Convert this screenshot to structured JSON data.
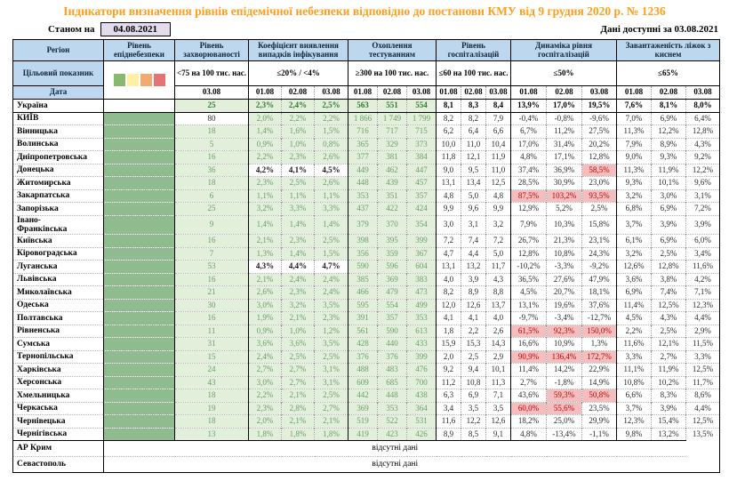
{
  "title": "Індикатори визначення рівнів епідемічної небезпеки відповідно до постанови КМУ від 9 грудня 2020 р. № 1236",
  "as_of": {
    "label": "Станом на",
    "date": "04.08.2021"
  },
  "available": {
    "label": "Дані доступні за",
    "date": "03.08.2021"
  },
  "columns": {
    "region": "Регіон",
    "danger_level": "Рівень епіднебезпеки"
  },
  "target_label": "Цільовий показник",
  "date_label": "Дата",
  "no_data_text": "відсутні дані",
  "legend": [
    {
      "name": "green",
      "color": "#86BA6E"
    },
    {
      "name": "yellow",
      "color": "#FFF1A0"
    },
    {
      "name": "orange",
      "color": "#F4A970"
    },
    {
      "name": "red",
      "color": "#E57373"
    }
  ],
  "danger_level_color": "#8FBC8F",
  "highlight_color": "#F5BEBE",
  "groups": [
    {
      "label": "Рівень захворюваності",
      "threshold": "<75 на 100 тис. нас.",
      "dates": [
        "03.08"
      ]
    },
    {
      "label": "Коефіцієнт виявлення випадків інфікування",
      "threshold": "≤20% / <4%",
      "dates": [
        "01.08",
        "02.08",
        "03.08"
      ]
    },
    {
      "label": "Охоплення тестуванням",
      "threshold": "≥300 на 100 тис. нас.",
      "dates": [
        "01.08",
        "02.08",
        "03.08"
      ]
    },
    {
      "label": "Рівень госпіталізацій",
      "threshold": "≤60 на 100 тис. нас.",
      "dates": [
        "01.08",
        "02.08",
        "03.08"
      ]
    },
    {
      "label": "Динаміка рівня госпіталізацій",
      "threshold": "≤50%",
      "dates": [
        "01.08",
        "02.08",
        "03.08"
      ]
    },
    {
      "label": "Завантаженість ліжок з киснем",
      "threshold": "≤65%",
      "dates": [
        "01.08",
        "02.08",
        "03.08"
      ]
    }
  ],
  "rows": [
    {
      "region": "Україна",
      "bold": true,
      "level_white": true,
      "sep_bottom": true,
      "morbidity": "25",
      "coef": [
        "2,3%",
        "2,4%",
        "2,5%"
      ],
      "test": [
        "563",
        "551",
        "554"
      ],
      "hosp": [
        "8,1",
        "8,3",
        "8,4"
      ],
      "dyn": [
        "13,9%",
        "17,0%",
        "19,5%"
      ],
      "oxy": [
        "7,6%",
        "8,1%",
        "8,0%"
      ]
    },
    {
      "region": "КИЇВ",
      "morbidity": "80",
      "morbidity_hl": true,
      "coef": [
        "2,0%",
        "2,2%",
        "2,2%"
      ],
      "test": [
        "1 866",
        "1 749",
        "1 799"
      ],
      "hosp": [
        "8,2",
        "8,2",
        "7,9"
      ],
      "dyn": [
        "-0,4%",
        "-0,8%",
        "-9,6%"
      ],
      "oxy": [
        "7,0%",
        "6,9%",
        "6,4%"
      ]
    },
    {
      "region": "Вінницька",
      "morbidity": "18",
      "coef": [
        "1,4%",
        "1,6%",
        "1,5%"
      ],
      "test": [
        "716",
        "717",
        "715"
      ],
      "hosp": [
        "6,2",
        "6,4",
        "6,6"
      ],
      "dyn": [
        "6,7%",
        "11,2%",
        "27,5%"
      ],
      "oxy": [
        "11,3%",
        "12,2%",
        "12,8%"
      ]
    },
    {
      "region": "Волинська",
      "morbidity": "5",
      "coef": [
        "0,9%",
        "1,0%",
        "0,8%"
      ],
      "test": [
        "365",
        "329",
        "373"
      ],
      "hosp": [
        "10,0",
        "11,0",
        "10,4"
      ],
      "dyn": [
        "17,0%",
        "31,4%",
        "20,2%"
      ],
      "oxy": [
        "7,9%",
        "8,9%",
        "4,3%"
      ]
    },
    {
      "region": "Дніпропетровська",
      "morbidity": "16",
      "coef": [
        "2,2%",
        "2,3%",
        "2,6%"
      ],
      "test": [
        "377",
        "381",
        "384"
      ],
      "hosp": [
        "11,8",
        "12,1",
        "11,9"
      ],
      "dyn": [
        "4,8%",
        "17,1%",
        "12,8%"
      ],
      "oxy": [
        "9,0%",
        "9,3%",
        "9,2%"
      ]
    },
    {
      "region": "Донецька",
      "morbidity": "36",
      "coef": [
        "4,2%",
        "4,1%",
        "4,5%"
      ],
      "coef_hl": [
        true,
        true,
        true
      ],
      "test": [
        "449",
        "462",
        "447"
      ],
      "hosp": [
        "9,0",
        "9,5",
        "11,0"
      ],
      "dyn": [
        "37,4%",
        "36,9%",
        "58,5%"
      ],
      "dyn_red": [
        false,
        false,
        true
      ],
      "oxy": [
        "11,3%",
        "11,9%",
        "12,2%"
      ]
    },
    {
      "region": "Житомирська",
      "morbidity": "18",
      "coef": [
        "2,3%",
        "2,5%",
        "2,6%"
      ],
      "test": [
        "448",
        "439",
        "457"
      ],
      "hosp": [
        "13,1",
        "13,4",
        "12,5"
      ],
      "dyn": [
        "28,5%",
        "30,9%",
        "23,0%"
      ],
      "oxy": [
        "9,3%",
        "10,1%",
        "9,6%"
      ]
    },
    {
      "region": "Закарпатська",
      "morbidity": "6",
      "coef": [
        "1,1%",
        "1,1%",
        "1,1%"
      ],
      "test": [
        "353",
        "351",
        "357"
      ],
      "hosp": [
        "4,8",
        "5,0",
        "4,8"
      ],
      "dyn": [
        "87,5%",
        "103,2%",
        "93,5%"
      ],
      "dyn_red": [
        true,
        true,
        true
      ],
      "oxy": [
        "3,2%",
        "3,0%",
        "3,1%"
      ]
    },
    {
      "region": "Запорізька",
      "morbidity": "25",
      "coef": [
        "3,2%",
        "3,3%",
        "3,3%"
      ],
      "test": [
        "437",
        "422",
        "424"
      ],
      "hosp": [
        "9,9",
        "9,6",
        "9,9"
      ],
      "dyn": [
        "12,9%",
        "5,2%",
        "2,5%"
      ],
      "oxy": [
        "6,8%",
        "6,9%",
        "7,2%"
      ]
    },
    {
      "region": "Івано-\nФранківська",
      "morbidity": "9",
      "coef": [
        "1,4%",
        "1,4%",
        "1,4%"
      ],
      "test": [
        "379",
        "370",
        "354"
      ],
      "hosp": [
        "3,0",
        "3,1",
        "3,2"
      ],
      "dyn": [
        "7,9%",
        "10,3%",
        "15,8%"
      ],
      "oxy": [
        "3,7%",
        "3,9%",
        "3,9%"
      ]
    },
    {
      "region": "Київська",
      "morbidity": "16",
      "coef": [
        "2,1%",
        "2,3%",
        "2,5%"
      ],
      "test": [
        "398",
        "395",
        "399"
      ],
      "hosp": [
        "7,2",
        "7,4",
        "7,2"
      ],
      "dyn": [
        "26,7%",
        "21,3%",
        "23,1%"
      ],
      "oxy": [
        "6,1%",
        "6,9%",
        "6,0%"
      ]
    },
    {
      "region": "Кіровоградська",
      "morbidity": "7",
      "coef": [
        "1,3%",
        "1,4%",
        "1,5%"
      ],
      "test": [
        "356",
        "359",
        "367"
      ],
      "hosp": [
        "4,7",
        "4,4",
        "5,0"
      ],
      "dyn": [
        "12,8%",
        "10,8%",
        "24,3%"
      ],
      "oxy": [
        "3,2%",
        "2,5%",
        "3,4%"
      ]
    },
    {
      "region": "Луганська",
      "morbidity": "53",
      "coef": [
        "4,3%",
        "4,4%",
        "4,7%"
      ],
      "coef_hl": [
        true,
        true,
        true
      ],
      "test": [
        "590",
        "596",
        "604"
      ],
      "hosp": [
        "13,1",
        "13,2",
        "11,7"
      ],
      "dyn": [
        "-10,2%",
        "-3,3%",
        "-9,2%"
      ],
      "oxy": [
        "12,6%",
        "12,8%",
        "11,6%"
      ]
    },
    {
      "region": "Львівська",
      "morbidity": "16",
      "coef": [
        "2,1%",
        "2,4%",
        "2,4%"
      ],
      "test": [
        "385",
        "369",
        "383"
      ],
      "hosp": [
        "4,0",
        "3,9",
        "4,3"
      ],
      "dyn": [
        "36,5%",
        "27,6%",
        "47,9%"
      ],
      "oxy": [
        "3,6%",
        "3,8%",
        "4,2%"
      ]
    },
    {
      "region": "Миколаївська",
      "morbidity": "21",
      "coef": [
        "2,6%",
        "2,3%",
        "2,4%"
      ],
      "test": [
        "466",
        "479",
        "473"
      ],
      "hosp": [
        "8,2",
        "8,9",
        "8,8"
      ],
      "dyn": [
        "4,5%",
        "20,7%",
        "18,1%"
      ],
      "oxy": [
        "6,9%",
        "7,4%",
        "7,1%"
      ]
    },
    {
      "region": "Одеська",
      "morbidity": "30",
      "coef": [
        "3,0%",
        "3,2%",
        "3,5%"
      ],
      "test": [
        "595",
        "554",
        "499"
      ],
      "hosp": [
        "12,0",
        "12,6",
        "13,7"
      ],
      "dyn": [
        "13,1%",
        "19,6%",
        "37,6%"
      ],
      "oxy": [
        "11,4%",
        "12,5%",
        "12,3%"
      ]
    },
    {
      "region": "Полтавська",
      "morbidity": "16",
      "coef": [
        "1,9%",
        "2,1%",
        "2,3%"
      ],
      "test": [
        "391",
        "357",
        "353"
      ],
      "hosp": [
        "4,1",
        "4,1",
        "4,0"
      ],
      "dyn": [
        "-9,7%",
        "-3,4%",
        "-12,7%"
      ],
      "oxy": [
        "4,5%",
        "4,3%",
        "4,4%"
      ]
    },
    {
      "region": "Рівненська",
      "morbidity": "11",
      "coef": [
        "0,9%",
        "1,0%",
        "1,2%"
      ],
      "test": [
        "561",
        "590",
        "613"
      ],
      "hosp": [
        "1,8",
        "2,2",
        "2,6"
      ],
      "dyn": [
        "61,5%",
        "92,3%",
        "150,0%"
      ],
      "dyn_red": [
        true,
        true,
        true
      ],
      "oxy": [
        "2,2%",
        "2,5%",
        "2,9%"
      ]
    },
    {
      "region": "Сумська",
      "morbidity": "31",
      "coef": [
        "3,6%",
        "3,6%",
        "3,5%"
      ],
      "test": [
        "428",
        "440",
        "433"
      ],
      "hosp": [
        "15,9",
        "15,3",
        "14,3"
      ],
      "dyn": [
        "16,6%",
        "10,9%",
        "1,3%"
      ],
      "oxy": [
        "11,6%",
        "12,1%",
        "11,5%"
      ]
    },
    {
      "region": "Тернопільська",
      "morbidity": "15",
      "coef": [
        "2,4%",
        "2,5%",
        "2,5%"
      ],
      "test": [
        "376",
        "376",
        "399"
      ],
      "hosp": [
        "2,0",
        "2,5",
        "2,9"
      ],
      "dyn": [
        "90,9%",
        "136,4%",
        "172,7%"
      ],
      "dyn_red": [
        true,
        true,
        true
      ],
      "oxy": [
        "3,3%",
        "2,7%",
        "3,3%"
      ]
    },
    {
      "region": "Харківська",
      "morbidity": "24",
      "coef": [
        "2,7%",
        "2,7%",
        "3,1%"
      ],
      "test": [
        "488",
        "483",
        "476"
      ],
      "hosp": [
        "9,2",
        "9,4",
        "10,1"
      ],
      "dyn": [
        "11,4%",
        "14,2%",
        "22,9%"
      ],
      "oxy": [
        "11,1%",
        "11,9%",
        "12,5%"
      ]
    },
    {
      "region": "Херсонська",
      "morbidity": "43",
      "coef": [
        "3,0%",
        "2,7%",
        "3,1%"
      ],
      "test": [
        "609",
        "685",
        "700"
      ],
      "hosp": [
        "11,2",
        "10,8",
        "11,3"
      ],
      "dyn": [
        "2,7%",
        "-1,8%",
        "14,9%"
      ],
      "oxy": [
        "10,8%",
        "10,2%",
        "11,7%"
      ]
    },
    {
      "region": "Хмельницька",
      "morbidity": "18",
      "coef": [
        "2,2%",
        "2,1%",
        "2,5%"
      ],
      "test": [
        "442",
        "448",
        "438"
      ],
      "hosp": [
        "6,3",
        "6,9",
        "7,1"
      ],
      "dyn": [
        "43,6%",
        "59,3%",
        "50,8%"
      ],
      "dyn_red": [
        false,
        true,
        true
      ],
      "oxy": [
        "6,6%",
        "8,3%",
        "8,6%"
      ]
    },
    {
      "region": "Черкаська",
      "morbidity": "19",
      "coef": [
        "2,3%",
        "2,8%",
        "2,7%"
      ],
      "test": [
        "369",
        "353",
        "364"
      ],
      "hosp": [
        "3,4",
        "3,5",
        "3,5"
      ],
      "dyn": [
        "60,0%",
        "55,6%",
        "23,5%"
      ],
      "dyn_red": [
        true,
        true,
        false
      ],
      "oxy": [
        "3,7%",
        "3,9%",
        "4,4%"
      ]
    },
    {
      "region": "Чернівецька",
      "morbidity": "18",
      "coef": [
        "2,0%",
        "2,1%",
        "2,1%"
      ],
      "test": [
        "519",
        "522",
        "531"
      ],
      "hosp": [
        "11,6",
        "12,2",
        "12,6"
      ],
      "dyn": [
        "18,2%",
        "25,0%",
        "29,9%"
      ],
      "oxy": [
        "12,3%",
        "15,4%",
        "12,5%"
      ]
    },
    {
      "region": "Чернігівська",
      "morbidity": "13",
      "coef": [
        "1,8%",
        "1,8%",
        "1,8%"
      ],
      "test": [
        "419",
        "423",
        "426"
      ],
      "hosp": [
        "8,9",
        "8,5",
        "9,1"
      ],
      "dyn": [
        "4,8%",
        "-13,4%",
        "-1,1%"
      ],
      "oxy": [
        "9,8%",
        "13,2%",
        "13,5%"
      ]
    }
  ],
  "no_data_rows": [
    "АР Крим",
    "Севастополь"
  ]
}
